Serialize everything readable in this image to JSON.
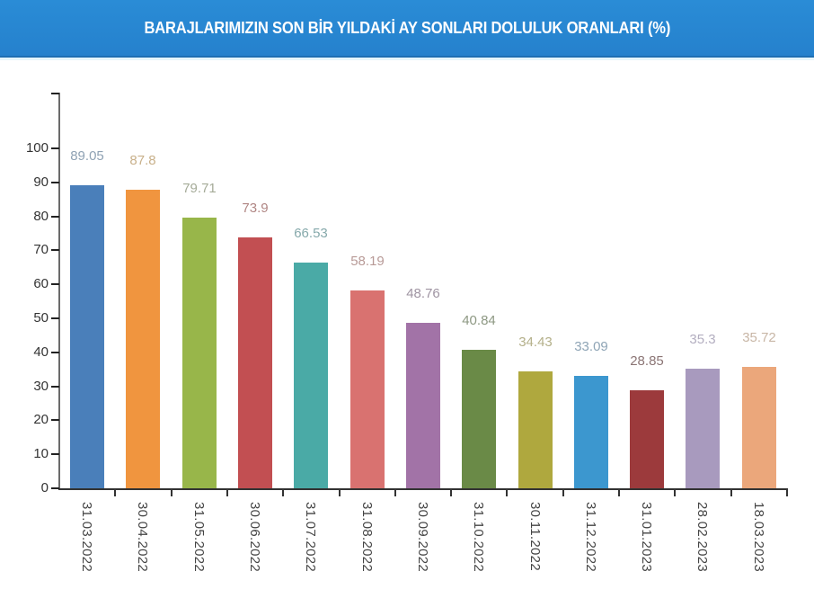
{
  "header": {
    "title": "BARAJLARIMIZIN SON BİR YILDAKİ AY SONLARI DOLULUK ORANLARI (%)"
  },
  "chart_data": {
    "type": "bar",
    "title": "BARAJLARIMIZIN SON BİR YILDAKİ AY SONLARI DOLULUK ORANLARI (%)",
    "xlabel": "",
    "ylabel": "",
    "ylim": [
      0,
      116
    ],
    "yticks": [
      0,
      10,
      20,
      30,
      40,
      50,
      60,
      70,
      80,
      90,
      100
    ],
    "grid": false,
    "legend": "none",
    "categories": [
      "31.03.2022",
      "30.04.2022",
      "31.05.2022",
      "30.06.2022",
      "31.07.2022",
      "31.08.2022",
      "30.09.2022",
      "31.10.2022",
      "30.11.2022",
      "31.12.2022",
      "31.01.2023",
      "28.02.2023",
      "18.03.2023"
    ],
    "values": [
      89.05,
      87.8,
      79.71,
      73.9,
      66.53,
      58.19,
      48.76,
      40.84,
      34.43,
      33.09,
      28.85,
      35.3,
      35.72
    ],
    "value_labels": [
      "89.05",
      "87.8",
      "79.71",
      "73.9",
      "66.53",
      "58.19",
      "48.76",
      "40.84",
      "34.43",
      "33.09",
      "28.85",
      "35.3",
      "35.72"
    ],
    "bar_colors": [
      "#4a7fba",
      "#f0953f",
      "#98b64a",
      "#c24f52",
      "#4aaaa6",
      "#d97270",
      "#a273a7",
      "#6a8a47",
      "#afa83e",
      "#3c97cf",
      "#9c3a3c",
      "#a89abe",
      "#eba77b"
    ],
    "label_colors": [
      "#8fa2b4",
      "#c8b08a",
      "#a5ab98",
      "#b08684",
      "#86a9ab",
      "#b89a97",
      "#9f94a2",
      "#8d9883",
      "#b4b08a",
      "#8fa5b6",
      "#8b7575",
      "#b3aec0",
      "#c8b6a6"
    ]
  }
}
